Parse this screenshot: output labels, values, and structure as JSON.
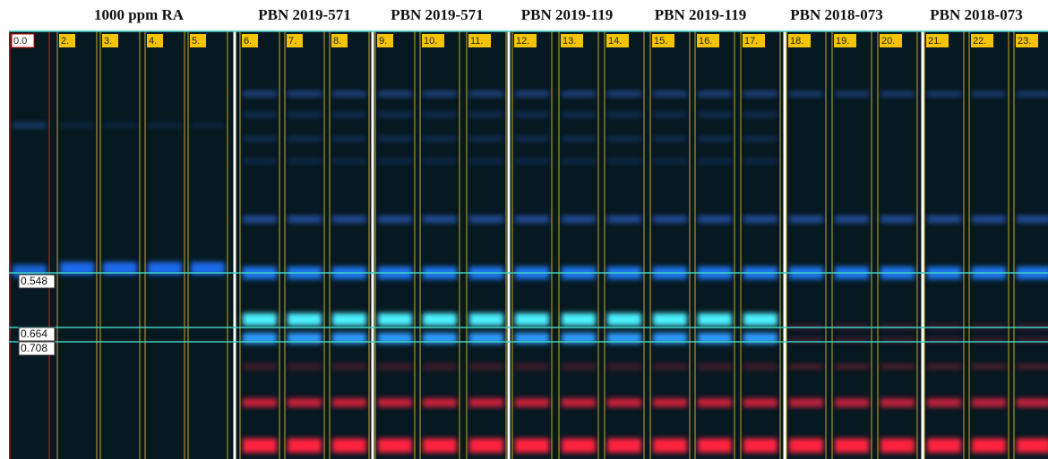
{
  "header": {
    "groups": [
      "1000 ppm RA",
      "PBN 2019-571",
      "PBN 2019-571",
      "PBN 2019-119",
      "PBN 2019-119",
      "PBN 2018-073",
      "PBN 2018-073"
    ]
  },
  "tracks": [
    "0.0",
    "2.",
    "3.",
    "4.",
    "5.",
    "6.",
    "7.",
    "8.",
    "9.",
    "10.",
    "11.",
    "12.",
    "13.",
    "14.",
    "15.",
    "16.",
    "17.",
    "18.",
    "19.",
    "20.",
    "21.",
    "22.",
    "23."
  ],
  "rf_markers": [
    "0.548",
    "0.664",
    "0.708"
  ]
}
